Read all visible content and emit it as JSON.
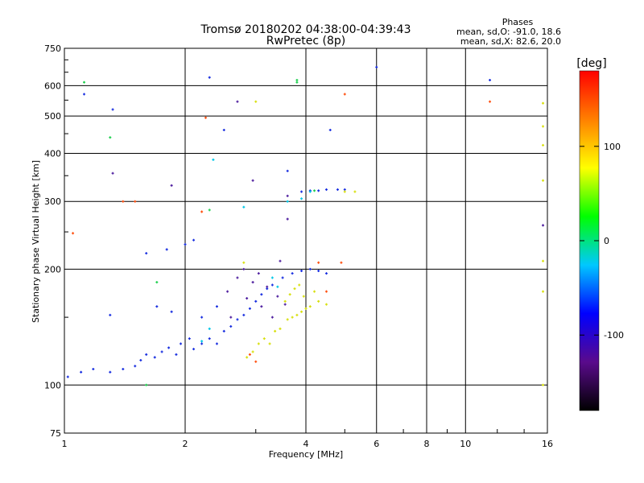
{
  "chart_data": {
    "type": "scatter",
    "title": "Tromsø 20180202 04:38:00-04:39:43",
    "subtitle": "RwPretec (8p)",
    "xlabel": "Frequency [MHz]",
    "ylabel": "Stationary phase Virtual Height [km]",
    "x_scale": "log",
    "y_scale": "log",
    "xlim": [
      1,
      16
    ],
    "ylim": [
      75,
      750
    ],
    "x_ticks": [
      1,
      2,
      4,
      6,
      8,
      10,
      16
    ],
    "x_tick_labels": [
      "1",
      "2",
      "4",
      "6",
      "8",
      "10",
      "16"
    ],
    "y_ticks": [
      75,
      100,
      200,
      300,
      400,
      500,
      600,
      750
    ],
    "y_tick_labels": [
      "75",
      "100",
      "200",
      "300",
      "400",
      "500",
      "600",
      "750"
    ],
    "grid": true,
    "legend": {
      "title": "Phases",
      "lines": [
        "mean, sd,O: -91.0, 18.6",
        "mean, sd,X:  82.6, 20.0"
      ],
      "placement": "top-right"
    },
    "colorbar": {
      "label": "[deg]",
      "ticks": [
        100,
        0,
        -100
      ],
      "tick_labels": [
        "100",
        "0",
        "-100"
      ],
      "range": [
        -180,
        180
      ],
      "colors": [
        "#000000",
        "#5a0a8c",
        "#0000ff",
        "#00c8ff",
        "#00ff00",
        "#ffff00",
        "#ff8000",
        "#ff0000"
      ]
    },
    "series": [
      {
        "color": "#1a30e0",
        "points": [
          [
            1.02,
            105
          ],
          [
            1.1,
            108
          ],
          [
            1.18,
            110
          ],
          [
            1.3,
            108
          ],
          [
            1.4,
            110
          ],
          [
            1.5,
            112
          ],
          [
            1.55,
            116
          ],
          [
            1.6,
            120
          ],
          [
            1.68,
            118
          ],
          [
            1.75,
            122
          ],
          [
            1.82,
            125
          ],
          [
            1.9,
            120
          ],
          [
            1.95,
            128
          ],
          [
            2.05,
            132
          ],
          [
            2.1,
            124
          ],
          [
            2.2,
            128
          ],
          [
            2.3,
            132
          ],
          [
            2.4,
            128
          ],
          [
            2.5,
            138
          ],
          [
            2.6,
            142
          ],
          [
            2.7,
            148
          ],
          [
            2.8,
            152
          ],
          [
            2.9,
            158
          ],
          [
            3.0,
            165
          ],
          [
            3.1,
            172
          ],
          [
            3.2,
            178
          ],
          [
            3.3,
            182
          ],
          [
            3.5,
            190
          ],
          [
            3.7,
            195
          ],
          [
            3.9,
            198
          ],
          [
            4.1,
            200
          ],
          [
            4.3,
            198
          ],
          [
            4.5,
            195
          ],
          [
            1.6,
            220
          ],
          [
            1.8,
            225
          ],
          [
            2.0,
            232
          ],
          [
            2.1,
            238
          ],
          [
            3.9,
            318
          ],
          [
            4.1,
            320
          ],
          [
            4.3,
            320
          ],
          [
            4.5,
            322
          ],
          [
            4.8,
            322
          ],
          [
            5.0,
            322
          ],
          [
            1.3,
            152
          ],
          [
            1.7,
            160
          ],
          [
            1.85,
            155
          ],
          [
            2.2,
            150
          ],
          [
            2.4,
            160
          ],
          [
            1.12,
            570
          ],
          [
            1.32,
            520
          ],
          [
            2.3,
            630
          ],
          [
            2.5,
            460
          ],
          [
            3.6,
            360
          ],
          [
            4.6,
            460
          ],
          [
            6.0,
            670
          ],
          [
            11.5,
            620
          ]
        ]
      },
      {
        "color": "#5020a0",
        "points": [
          [
            2.55,
            175
          ],
          [
            2.7,
            190
          ],
          [
            2.8,
            200
          ],
          [
            2.95,
            185
          ],
          [
            3.05,
            195
          ],
          [
            3.2,
            180
          ],
          [
            3.4,
            170
          ],
          [
            3.45,
            210
          ],
          [
            3.55,
            162
          ],
          [
            2.6,
            150
          ],
          [
            2.85,
            168
          ],
          [
            3.1,
            160
          ],
          [
            3.3,
            150
          ],
          [
            1.32,
            355
          ],
          [
            1.85,
            330
          ],
          [
            2.95,
            340
          ],
          [
            3.6,
            270
          ],
          [
            3.6,
            310
          ],
          [
            2.7,
            545
          ],
          [
            15.6,
            260
          ]
        ]
      },
      {
        "color": "#d8e010",
        "points": [
          [
            2.85,
            118
          ],
          [
            2.95,
            122
          ],
          [
            3.05,
            128
          ],
          [
            3.15,
            132
          ],
          [
            3.25,
            128
          ],
          [
            3.35,
            138
          ],
          [
            3.45,
            140
          ],
          [
            3.6,
            148
          ],
          [
            3.7,
            150
          ],
          [
            3.8,
            152
          ],
          [
            3.9,
            155
          ],
          [
            4.0,
            158
          ],
          [
            4.1,
            160
          ],
          [
            4.3,
            165
          ],
          [
            4.5,
            162
          ],
          [
            3.55,
            165
          ],
          [
            3.65,
            172
          ],
          [
            3.75,
            178
          ],
          [
            3.85,
            182
          ],
          [
            3.95,
            170
          ],
          [
            4.2,
            175
          ],
          [
            2.8,
            208
          ],
          [
            3.0,
            545
          ],
          [
            15.6,
            540
          ],
          [
            15.6,
            470
          ],
          [
            15.6,
            420
          ],
          [
            15.6,
            340
          ],
          [
            15.6,
            210
          ],
          [
            15.6,
            175
          ],
          [
            15.6,
            100
          ],
          [
            5.0,
            318
          ],
          [
            5.3,
            318
          ]
        ]
      },
      {
        "color": "#ff5010",
        "points": [
          [
            3.0,
            115
          ],
          [
            2.9,
            120
          ],
          [
            4.5,
            175
          ],
          [
            4.3,
            208
          ],
          [
            4.9,
            208
          ],
          [
            1.4,
            300
          ],
          [
            1.5,
            300
          ],
          [
            2.25,
            495
          ],
          [
            5.0,
            570
          ],
          [
            11.5,
            545
          ],
          [
            2.2,
            282
          ],
          [
            1.05,
            248
          ]
        ]
      },
      {
        "color": "#20d050",
        "points": [
          [
            1.12,
            612
          ],
          [
            1.3,
            440
          ],
          [
            1.6,
            100
          ],
          [
            2.3,
            285
          ],
          [
            3.8,
            612
          ],
          [
            3.8,
            620
          ],
          [
            4.2,
            320
          ],
          [
            1.7,
            185
          ]
        ]
      },
      {
        "color": "#00c8e8",
        "points": [
          [
            2.8,
            290
          ],
          [
            3.6,
            300
          ],
          [
            3.9,
            305
          ],
          [
            4.1,
            318
          ],
          [
            2.2,
            130
          ],
          [
            2.3,
            140
          ],
          [
            3.3,
            190
          ],
          [
            3.4,
            180
          ],
          [
            2.35,
            385
          ]
        ]
      }
    ]
  }
}
